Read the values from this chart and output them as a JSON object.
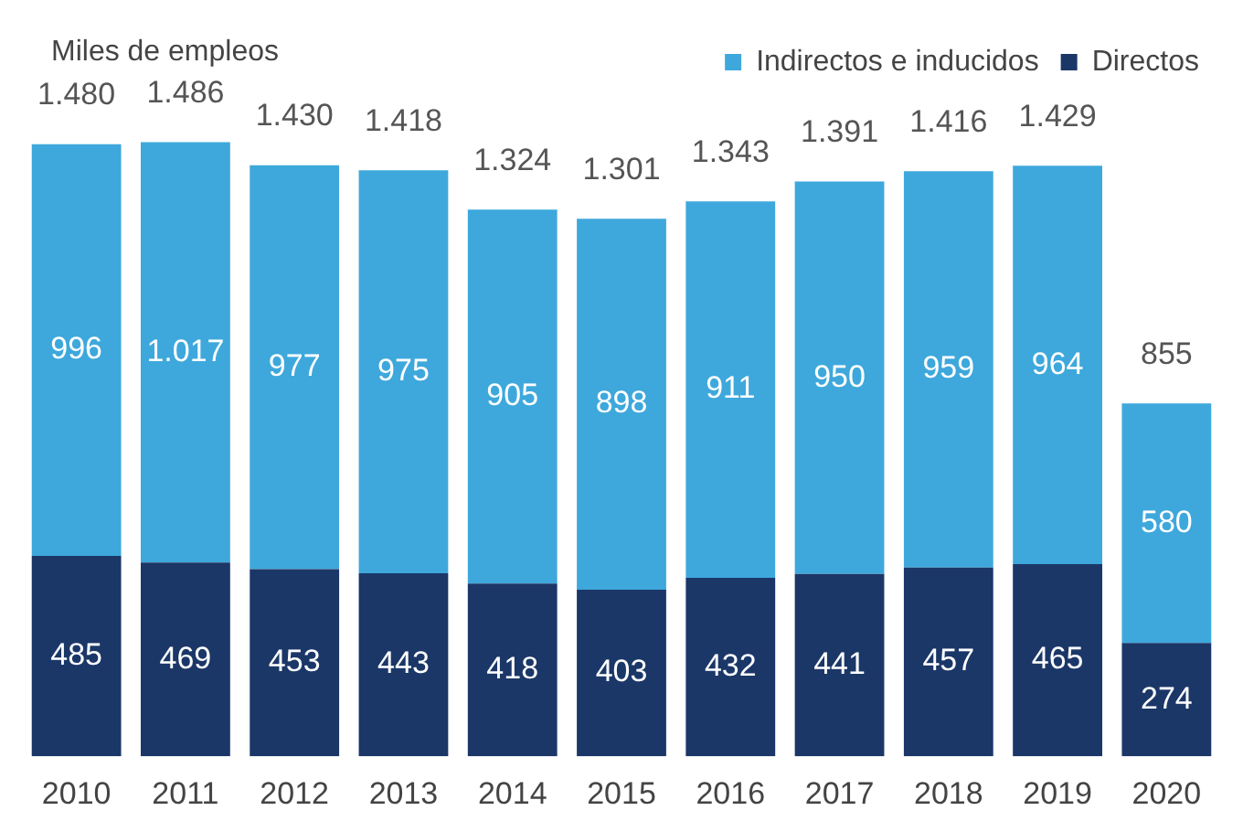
{
  "chart_data": {
    "type": "bar",
    "ylabel": "Miles de empleos",
    "stacked": true,
    "legend": "top right",
    "categories": [
      "2010",
      "2011",
      "2012",
      "2013",
      "2014",
      "2015",
      "2016",
      "2017",
      "2018",
      "2019",
      "2020"
    ],
    "series": [
      {
        "name": "Directos",
        "color": "#1b3768",
        "values": [
          485,
          469,
          453,
          443,
          418,
          403,
          432,
          441,
          457,
          465,
          274
        ],
        "value_labels": [
          "485",
          "469",
          "453",
          "443",
          "418",
          "403",
          "432",
          "441",
          "457",
          "465",
          "274"
        ]
      },
      {
        "name": "Indirectos e inducidos",
        "color": "#3ea8dc",
        "values": [
          996,
          1017,
          977,
          975,
          905,
          898,
          911,
          950,
          959,
          964,
          580
        ],
        "value_labels": [
          "996",
          "1.017",
          "977",
          "975",
          "905",
          "898",
          "911",
          "950",
          "959",
          "964",
          "580"
        ]
      }
    ],
    "totals": [
      "1.480",
      "1.486",
      "1.430",
      "1.418",
      "1.324",
      "1.301",
      "1.343",
      "1.391",
      "1.416",
      "1.429",
      "855"
    ]
  }
}
